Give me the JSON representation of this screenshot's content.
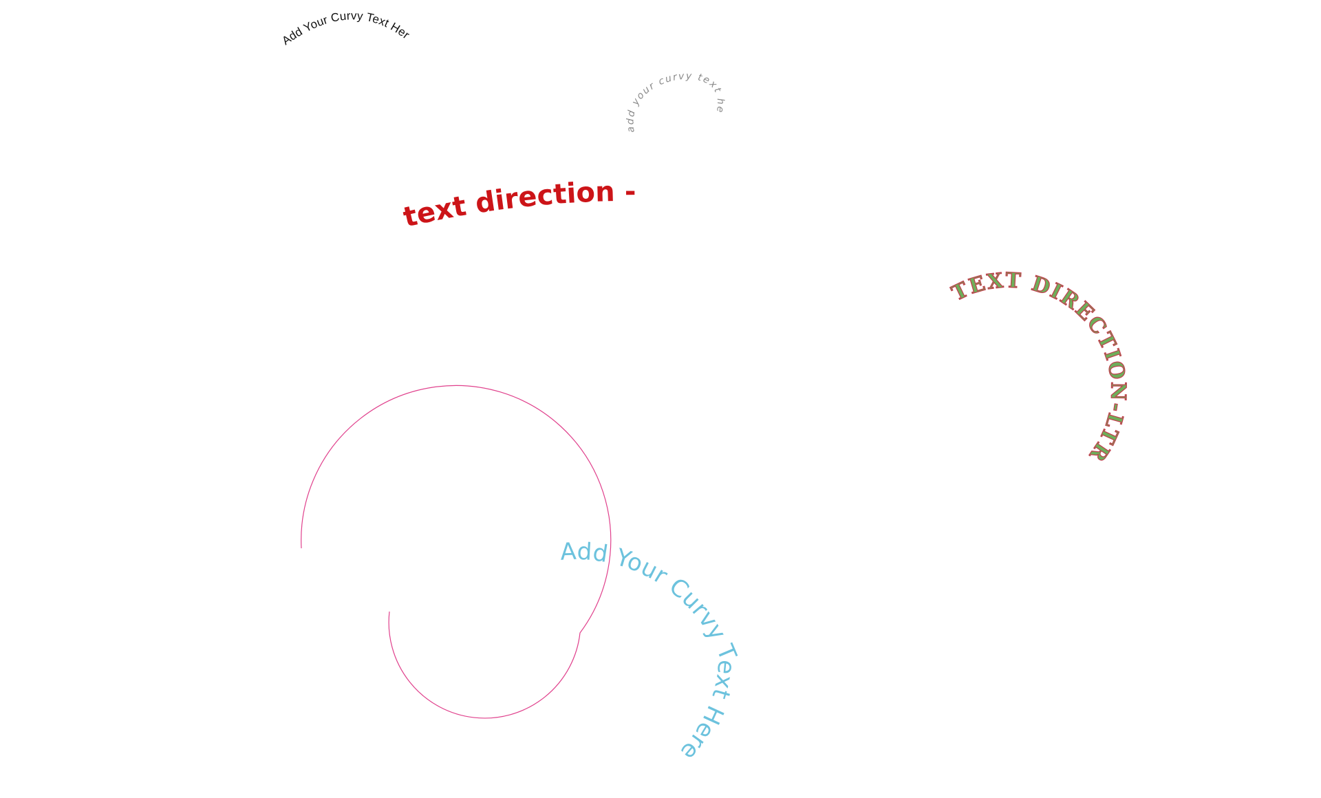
{
  "texts": {
    "curve_one": "Add Your Curvy  Text Here",
    "curve_two": "add your curvy text he",
    "rtl_label": "text direction -RTL",
    "ltr_label": "TEXT DIRECTION-LTR",
    "spiral_label": "Add Your Curvy Text Here"
  },
  "colors": {
    "curve_one": "#111111",
    "curve_two": "#8a8a8a",
    "rtl_label": "#cc1418",
    "ltr_fill": "#6fae5a",
    "ltr_stroke": "#c23c4c",
    "spiral_text": "#6cc2dd",
    "spiral_guide": "#e0408c"
  }
}
